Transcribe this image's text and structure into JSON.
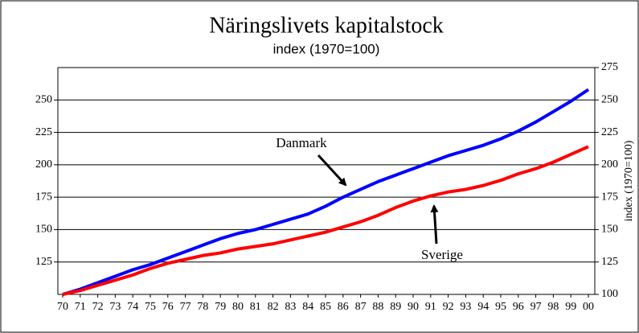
{
  "chart_data": {
    "type": "line",
    "title": "Näringslivets kapitalstock",
    "subtitle": "index (1970=100)",
    "y2label": "index (1970=100)",
    "categories": [
      "70",
      "71",
      "72",
      "73",
      "74",
      "75",
      "76",
      "77",
      "78",
      "79",
      "80",
      "81",
      "82",
      "83",
      "84",
      "85",
      "86",
      "87",
      "88",
      "89",
      "90",
      "91",
      "92",
      "93",
      "94",
      "95",
      "96",
      "97",
      "98",
      "99",
      "00"
    ],
    "series": [
      {
        "name": "Danmark",
        "color": "#0000ff",
        "values": [
          100,
          104,
          109,
          114,
          119,
          123,
          128,
          133,
          138,
          143,
          147,
          150,
          154,
          158,
          162,
          168,
          175,
          181,
          187,
          192,
          197,
          202,
          207,
          211,
          215,
          220,
          226,
          233,
          241,
          249,
          258
        ]
      },
      {
        "name": "Sverige",
        "color": "#ff0000",
        "values": [
          100,
          103,
          107,
          111,
          115,
          120,
          124,
          127,
          130,
          132,
          135,
          137,
          139,
          142,
          145,
          148,
          152,
          156,
          161,
          167,
          172,
          176,
          179,
          181,
          184,
          188,
          193,
          197,
          202,
          208,
          214
        ]
      }
    ],
    "ylim": [
      100,
      275
    ],
    "yticks": [
      125,
      150,
      175,
      200,
      225,
      250
    ],
    "y2lim": [
      100,
      275
    ],
    "y2ticks": [
      100,
      125,
      150,
      175,
      200,
      225,
      250,
      275
    ],
    "grid": true
  }
}
